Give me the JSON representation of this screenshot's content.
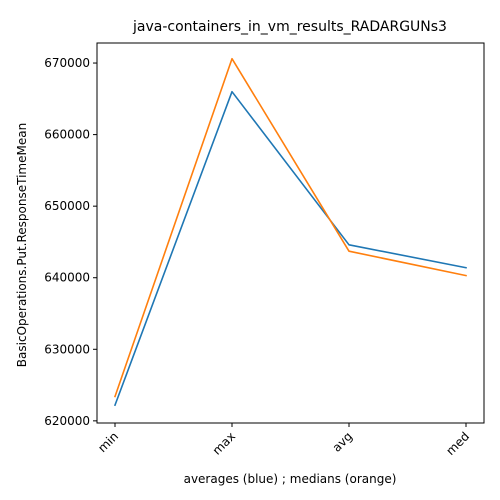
{
  "chart_data": {
    "type": "line",
    "title": "java-containers_in_vm_results_RADARGUNs3",
    "xlabel": "averages (blue) ; medians (orange)",
    "ylabel": "BasicOperations.Put.ResponseTimeMean",
    "categories": [
      "min",
      "max",
      "avg",
      "med"
    ],
    "ylim": [
      619700,
      672800
    ],
    "yticks": [
      620000,
      630000,
      640000,
      650000,
      660000,
      670000
    ],
    "ytick_labels": [
      "620000",
      "630000",
      "640000",
      "650000",
      "660000",
      "670000"
    ],
    "grid": false,
    "series": [
      {
        "color": "#1f77b4",
        "values": [
          622200,
          666000,
          644600,
          641400
        ]
      },
      {
        "color": "#ff7f0e",
        "values": [
          623400,
          670600,
          643700,
          640300
        ]
      }
    ]
  }
}
